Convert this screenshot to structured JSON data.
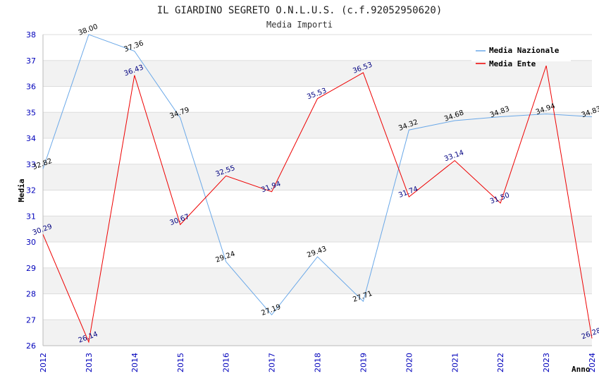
{
  "chart_data": {
    "type": "line",
    "title": "IL GIARDINO SEGRETO O.N.L.U.S. (c.f.92052950620)",
    "subtitle": "Media Importi",
    "ylabel": "Media",
    "xlabel": "Anno",
    "ylim": [
      26,
      38
    ],
    "yticks": [
      "26",
      "27",
      "28",
      "29",
      "30",
      "31",
      "32",
      "33",
      "34",
      "35",
      "36",
      "37",
      "38"
    ],
    "x": [
      "2012",
      "2013",
      "2014",
      "2015",
      "2016",
      "2017",
      "2018",
      "2019",
      "2020",
      "2021",
      "2022",
      "2023",
      "2024"
    ],
    "grid": true,
    "legend_position": "top-right",
    "series": [
      {
        "name": "Media Nazionale",
        "color": "#6aa8e8",
        "label_color": "#000000",
        "values": [
          32.82,
          38.0,
          37.36,
          34.79,
          29.24,
          27.19,
          29.43,
          27.71,
          34.32,
          34.68,
          34.83,
          34.94,
          34.83
        ],
        "labels": [
          "32.82",
          "38.00",
          "37.36",
          "34.79",
          "29.24",
          "27.19",
          "29.43",
          "27.71",
          "34.32",
          "34.68",
          "34.83",
          "34.94",
          "34.83"
        ]
      },
      {
        "name": "Media Ente",
        "color": "#ee0000",
        "label_color": "#000080",
        "values": [
          30.29,
          26.14,
          36.43,
          30.67,
          32.55,
          31.94,
          35.53,
          36.53,
          31.74,
          33.14,
          31.5,
          36.8,
          26.28
        ],
        "labels": [
          "30.29",
          "26.14",
          "36.43",
          "30.67",
          "32.55",
          "31.94",
          "35.53",
          "36.53",
          "31.74",
          "33.14",
          "31.50",
          "",
          "26.28"
        ]
      }
    ]
  }
}
